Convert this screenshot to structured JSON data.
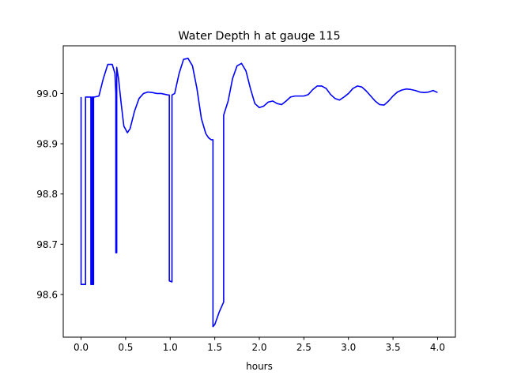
{
  "chart_data": {
    "type": "line",
    "title": "Water Depth h at gauge 115",
    "xlabel": "hours",
    "ylabel": "",
    "xlim": [
      -0.2,
      4.2
    ],
    "ylim": [
      98.515,
      99.095
    ],
    "xticks": [
      0.0,
      0.5,
      1.0,
      1.5,
      2.0,
      2.5,
      3.0,
      3.5,
      4.0
    ],
    "xtick_labels": [
      "0.0",
      "0.5",
      "1.0",
      "1.5",
      "2.0",
      "2.5",
      "3.0",
      "3.5",
      "4.0"
    ],
    "yticks": [
      98.6,
      98.7,
      98.8,
      98.9,
      99.0
    ],
    "ytick_labels": [
      "98.6",
      "98.7",
      "98.8",
      "98.9",
      "99.0"
    ],
    "grid": false,
    "series": [
      {
        "color": "#0000ff",
        "x": [
          0.0,
          0.0,
          0.05,
          0.05,
          0.1,
          0.11,
          0.11,
          0.12,
          0.12,
          0.13,
          0.13,
          0.14,
          0.14,
          0.15,
          0.15,
          0.2,
          0.25,
          0.3,
          0.35,
          0.38,
          0.39,
          0.39,
          0.4,
          0.4,
          0.42,
          0.45,
          0.48,
          0.52,
          0.55,
          0.6,
          0.65,
          0.7,
          0.75,
          0.8,
          0.85,
          0.9,
          0.95,
          0.98,
          0.99,
          0.99,
          1.02,
          1.02,
          1.05,
          1.1,
          1.15,
          1.2,
          1.25,
          1.3,
          1.35,
          1.4,
          1.43,
          1.46,
          1.48,
          1.48,
          1.5,
          1.55,
          1.6,
          1.6,
          1.65,
          1.7,
          1.75,
          1.8,
          1.85,
          1.9,
          1.95,
          2.0,
          2.05,
          2.1,
          2.15,
          2.2,
          2.25,
          2.3,
          2.35,
          2.4,
          2.45,
          2.5,
          2.55,
          2.6,
          2.65,
          2.7,
          2.75,
          2.8,
          2.85,
          2.9,
          2.95,
          3.0,
          3.05,
          3.1,
          3.15,
          3.2,
          3.25,
          3.3,
          3.35,
          3.4,
          3.45,
          3.5,
          3.55,
          3.6,
          3.65,
          3.7,
          3.75,
          3.8,
          3.85,
          3.9,
          3.95,
          4.0
        ],
        "y": [
          98.993,
          98.62,
          98.62,
          98.993,
          98.993,
          98.993,
          98.62,
          98.62,
          98.993,
          98.993,
          98.62,
          98.62,
          98.993,
          98.993,
          98.993,
          98.995,
          99.03,
          99.058,
          99.058,
          99.04,
          99.0,
          98.683,
          98.683,
          99.052,
          99.03,
          98.98,
          98.935,
          98.922,
          98.93,
          98.965,
          98.99,
          99.0,
          99.003,
          99.002,
          99.0,
          99.0,
          98.998,
          98.997,
          98.997,
          98.627,
          98.625,
          98.997,
          99.0,
          99.04,
          99.068,
          99.07,
          99.055,
          99.01,
          98.95,
          98.92,
          98.912,
          98.908,
          98.908,
          98.536,
          98.54,
          98.565,
          98.585,
          98.957,
          98.985,
          99.03,
          99.055,
          99.06,
          99.045,
          99.01,
          98.98,
          98.972,
          98.975,
          98.983,
          98.985,
          98.98,
          98.978,
          98.985,
          98.993,
          98.995,
          98.995,
          98.995,
          98.998,
          99.008,
          99.015,
          99.015,
          99.01,
          98.998,
          98.99,
          98.987,
          98.993,
          99.0,
          99.01,
          99.015,
          99.013,
          99.005,
          98.995,
          98.985,
          98.978,
          98.977,
          98.985,
          98.995,
          99.003,
          99.007,
          99.009,
          99.008,
          99.006,
          99.003,
          99.002,
          99.003,
          99.006,
          99.002
        ]
      }
    ]
  }
}
